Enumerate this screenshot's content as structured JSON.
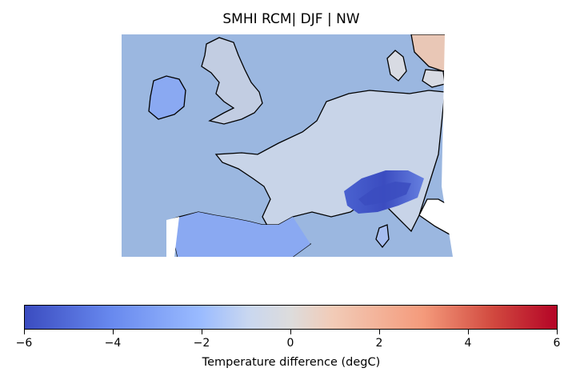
{
  "title": "SMHI RCM| DJF | NW",
  "colors": {
    "ocean": "#9bb7e0",
    "land_base": "#c7d3e6",
    "coast": "#000000",
    "cmap_stops": [
      "#3b4cc0",
      "#6788ee",
      "#9abbff",
      "#c9d7f0",
      "#e1dddb",
      "#f6bfa6",
      "#f49a7b",
      "#d1493f",
      "#b40426"
    ]
  },
  "colorbar": {
    "label": "Temperature difference (degC)",
    "min": -6,
    "max": 6,
    "ticks": [
      "−6",
      "−4",
      "−2",
      "0",
      "2",
      "4",
      "6"
    ]
  }
}
